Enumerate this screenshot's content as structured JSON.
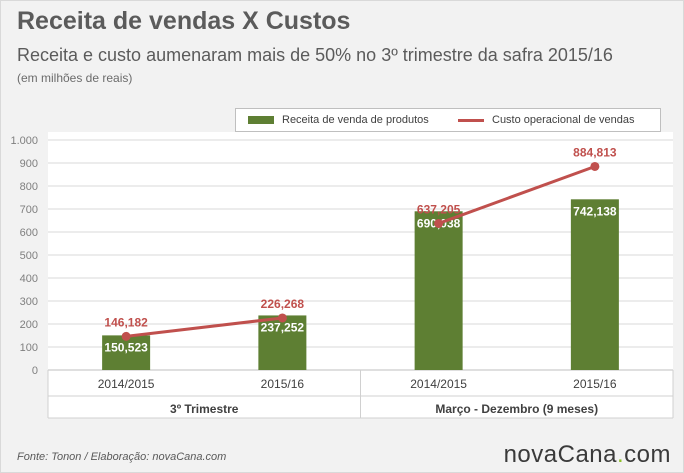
{
  "header": {
    "title": "Receita de vendas X Custos",
    "subtitle": "Receita e custo aumenaram mais de 50% no 3º trimestre da safra 2015/16",
    "unit_note": "(em milhões de reais)"
  },
  "footer": {
    "source": "Fonte: Tonon / Elaboração: novaCana.com",
    "brand_prefix": "nova",
    "brand_main": "Cana",
    "brand_dot": ".",
    "brand_suffix": "com"
  },
  "colors": {
    "bar": "#5e7f33",
    "line": "#c0504d",
    "grid": "#d9d9d9",
    "brand_dot": "#8cbf26"
  },
  "chart_data": {
    "type": "bar",
    "categories": [
      "2014/2015",
      "2015/16",
      "2014/2015",
      "2015/16"
    ],
    "groups": [
      {
        "label": "3º Trimestre",
        "categories": [
          0,
          1
        ]
      },
      {
        "label": "Março - Dezembro (9 meses)",
        "categories": [
          2,
          3
        ]
      }
    ],
    "series": [
      {
        "name": "Receita de venda de produtos",
        "type": "bar",
        "values": [
          150.523,
          237.252,
          690.038,
          742.138
        ],
        "labels": [
          "150,523",
          "237,252",
          "690,038",
          "742,138"
        ]
      },
      {
        "name": "Custo operacional de vendas",
        "type": "line",
        "values": [
          146.182,
          226.268,
          637.205,
          884.813
        ],
        "labels": [
          "146,182",
          "226,268",
          "637,205",
          "884,813"
        ]
      }
    ],
    "ylim": [
      0,
      1000
    ],
    "yticks": [
      0,
      100,
      200,
      300,
      400,
      500,
      600,
      700,
      800,
      900,
      1000
    ],
    "ytick_labels": [
      "0",
      "100",
      "200",
      "300",
      "400",
      "500",
      "600",
      "700",
      "800",
      "900",
      "1.000"
    ],
    "grid": true,
    "legend": "top-right",
    "line_breaks_between_groups": true
  }
}
